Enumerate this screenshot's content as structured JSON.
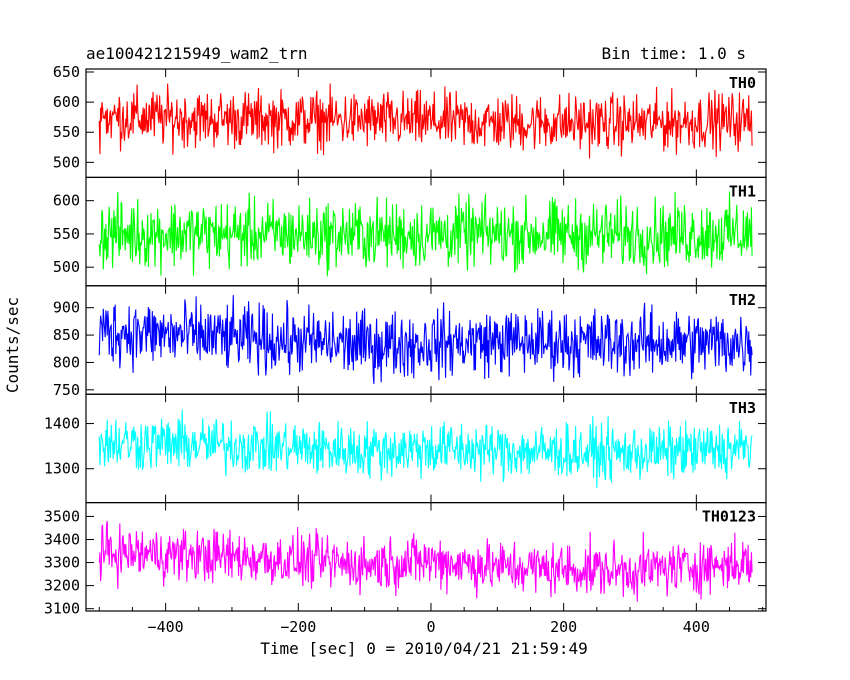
{
  "header": {
    "left": "ae100421215949_wam2_trn",
    "right": "Bin time: 1.0 s"
  },
  "axes": {
    "xlabel": "Time [sec] 0 = 2010/04/21 21:59:49",
    "ylabel": "Counts/sec"
  },
  "chart_data": {
    "type": "line",
    "title": "ae100421215949_wam2_trn",
    "bin_time": "Bin time: 1.0 s",
    "xlabel": "Time [sec] 0 = 2010/04/21 21:59:49",
    "ylabel": "Counts/sec",
    "xlim": [
      -520,
      505
    ],
    "x_range_data": [
      -500,
      484
    ],
    "x_ticks": [
      -400,
      -200,
      0,
      200,
      400
    ],
    "x_tick_labels": [
      "−400",
      "−200",
      "0",
      "200",
      "400"
    ],
    "grid": false,
    "series": [
      {
        "name": "TH0",
        "color": "#ff0000",
        "ylim": [
          475,
          655
        ],
        "y_ticks": [
          500,
          550,
          600,
          650
        ],
        "mean": 572,
        "amplitude": 70,
        "envelope_times": [
          -500,
          -300,
          -100,
          0,
          100,
          300,
          484
        ],
        "envelope_means": [
          575,
          572,
          570,
          568,
          566,
          565,
          570
        ]
      },
      {
        "name": "TH1",
        "color": "#00ff00",
        "ylim": [
          472,
          635
        ],
        "y_ticks": [
          500,
          550,
          600
        ],
        "mean": 550,
        "amplitude": 75,
        "envelope_times": [
          -500,
          -300,
          -100,
          0,
          100,
          300,
          484
        ],
        "envelope_means": [
          551,
          550,
          549,
          550,
          550,
          549,
          551
        ]
      },
      {
        "name": "TH2",
        "color": "#0000ff",
        "ylim": [
          742,
          940
        ],
        "y_ticks": [
          750,
          800,
          850,
          900
        ],
        "mean": 840,
        "amplitude": 90,
        "envelope_times": [
          -500,
          -300,
          -100,
          0,
          100,
          300,
          484
        ],
        "envelope_means": [
          858,
          845,
          832,
          835,
          838,
          836,
          836
        ]
      },
      {
        "name": "TH3",
        "color": "#00ffff",
        "ylim": [
          1225,
          1465
        ],
        "y_ticks": [
          1300,
          1400
        ],
        "mean": 1345,
        "amplitude": 90,
        "envelope_times": [
          -500,
          -300,
          -100,
          0,
          100,
          300,
          484
        ],
        "envelope_means": [
          1360,
          1352,
          1340,
          1345,
          1340,
          1335,
          1345
        ]
      },
      {
        "name": "TH0123",
        "color": "#ff00ff",
        "ylim": [
          3090,
          3560
        ],
        "y_ticks": [
          3100,
          3200,
          3300,
          3400,
          3500
        ],
        "mean": 3300,
        "amplitude": 170,
        "envelope_times": [
          -500,
          -300,
          -100,
          0,
          100,
          300,
          484
        ],
        "envelope_means": [
          3345,
          3325,
          3290,
          3310,
          3280,
          3265,
          3300
        ]
      }
    ]
  }
}
